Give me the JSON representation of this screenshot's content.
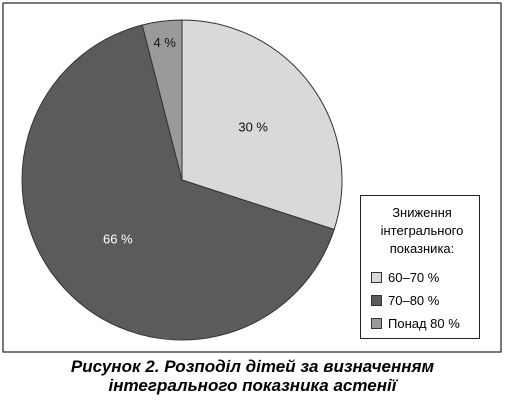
{
  "chart_data": {
    "type": "pie",
    "title": "Рисунок 2. Розподіл дітей за визначенням інтегрального показника астенії",
    "legend_title": "Зниження інтегрального показника:",
    "categories": [
      "60–70 %",
      "70–80 %",
      "Понад 80 %"
    ],
    "values": [
      30,
      66,
      4
    ],
    "value_labels": [
      "30 %",
      "66 %",
      "4 %"
    ],
    "colors": [
      "#d9d9d9",
      "#5b5b5b",
      "#9a9a9a"
    ],
    "legend": "lower right"
  }
}
